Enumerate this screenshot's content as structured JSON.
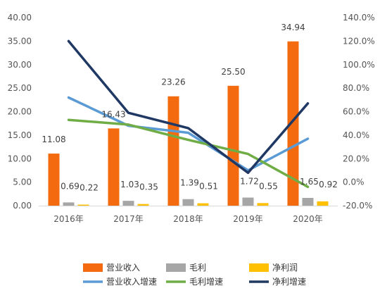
{
  "chart_data": {
    "type": "bar",
    "categories": [
      "2016年",
      "2017年",
      "2018年",
      "2019年",
      "2020年"
    ],
    "bar_series": [
      {
        "name": "营业收入",
        "values": [
          11.08,
          16.43,
          23.26,
          25.5,
          34.94
        ],
        "labels": [
          "11.08",
          "16.43",
          "23.26",
          "25.50",
          "34.94"
        ],
        "color": "#F46B0F"
      },
      {
        "name": "毛利",
        "values": [
          0.69,
          1.03,
          1.39,
          1.72,
          1.65
        ],
        "labels": [
          "0.69",
          "1.03",
          "1.39",
          "1.72",
          "1.65"
        ],
        "color": "#A6A6A6"
      },
      {
        "name": "净利润",
        "values": [
          0.22,
          0.35,
          0.51,
          0.55,
          0.92
        ],
        "labels": [
          "0.22",
          "0.35",
          "0.51",
          "0.55",
          "0.92"
        ],
        "color": "#FFC000"
      }
    ],
    "line_series": [
      {
        "name": "营业收入增速",
        "values": [
          72,
          48,
          42,
          10,
          37
        ],
        "color": "#5B9BD5"
      },
      {
        "name": "毛利增速",
        "values": [
          53,
          49,
          36,
          24,
          -4
        ],
        "color": "#70AD47"
      },
      {
        "name": "净利增速",
        "values": [
          120,
          59,
          46,
          8,
          67
        ],
        "color": "#203864"
      }
    ],
    "y_left": {
      "min": 0,
      "max": 40,
      "ticks": [
        "0.00",
        "5.00",
        "10.00",
        "15.00",
        "20.00",
        "25.00",
        "30.00",
        "35.00",
        "40.00"
      ]
    },
    "y_right": {
      "min": -20,
      "max": 140,
      "ticks": [
        "-20.0%",
        "0.0%",
        "20.0%",
        "40.0%",
        "60.0%",
        "80.0%",
        "100.0%",
        "120.0%",
        "140.0%"
      ]
    },
    "grid": false,
    "legend_position": "bottom"
  }
}
